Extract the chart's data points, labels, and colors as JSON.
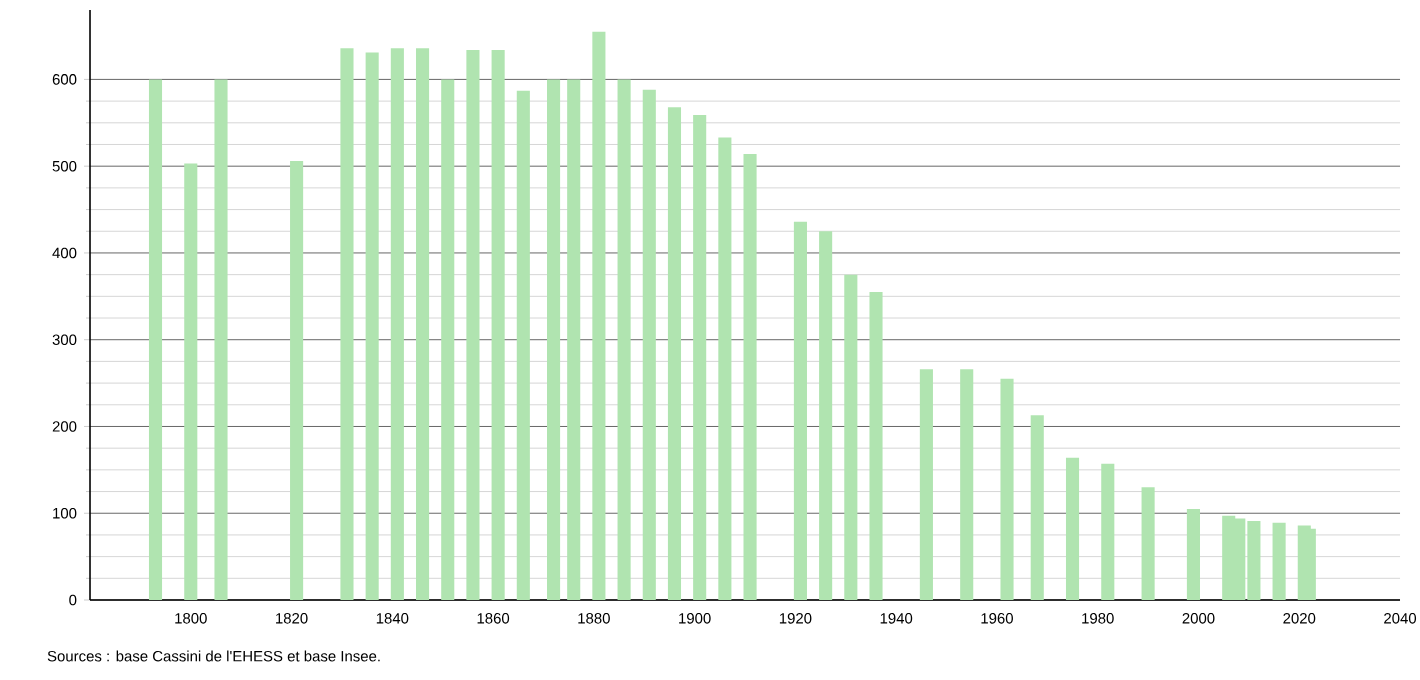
{
  "chart_data": {
    "type": "bar",
    "color": "#b0e4b0",
    "x": [
      1793,
      1800,
      1806,
      1821,
      1831,
      1836,
      1841,
      1846,
      1851,
      1856,
      1861,
      1866,
      1872,
      1876,
      1881,
      1886,
      1891,
      1896,
      1901,
      1906,
      1911,
      1921,
      1926,
      1931,
      1936,
      1946,
      1954,
      1962,
      1968,
      1975,
      1982,
      1990,
      1999,
      2006,
      2008,
      2011,
      2016,
      2021,
      2022
    ],
    "values": [
      600,
      503,
      600,
      506,
      636,
      631,
      636,
      636,
      600,
      634,
      634,
      587,
      600,
      600,
      655,
      600,
      588,
      568,
      559,
      533,
      514,
      436,
      425,
      375,
      355,
      266,
      266,
      255,
      213,
      164,
      157,
      130,
      105,
      97,
      94,
      91,
      89,
      86,
      82
    ],
    "xlim": [
      1780,
      2040
    ],
    "xticks": [
      1800,
      1820,
      1840,
      1860,
      1880,
      1900,
      1920,
      1940,
      1960,
      1980,
      2000,
      2020,
      2040
    ],
    "ylim": [
      0,
      680
    ],
    "yticks": [
      0,
      100,
      200,
      300,
      400,
      500,
      600
    ],
    "grid": "y",
    "annotations": [
      "Sources : base Cassini de l'EHESS et base Insee."
    ]
  }
}
